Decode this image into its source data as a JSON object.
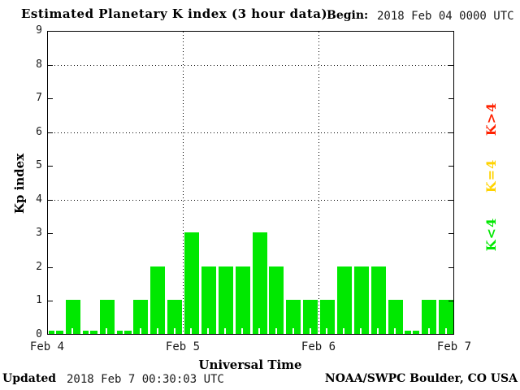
{
  "header": {
    "title": "Estimated Planetary K index (3 hour data)",
    "begin_label": "Begin:",
    "begin_value": "2018 Feb 04 0000 UTC"
  },
  "axes": {
    "y_label": "Kp index",
    "x_label": "Universal Time",
    "y_ticks": [
      "0",
      "1",
      "2",
      "3",
      "4",
      "5",
      "6",
      "7",
      "8",
      "9"
    ],
    "y_gridlines": [
      4,
      6,
      8
    ],
    "x_day_labels": [
      "Feb 4",
      "Feb 5",
      "Feb 6",
      "Feb 7"
    ]
  },
  "legend": {
    "items": [
      {
        "label": "K>4",
        "color": "#ff2100"
      },
      {
        "label": "K=4",
        "color": "#ffd300"
      },
      {
        "label": "K<4",
        "color": "#00e800"
      }
    ]
  },
  "footer": {
    "updated_label": "Updated",
    "updated_value": "2018 Feb  7 00:30:03 UTC",
    "credit": "NOAA/SWPC Boulder, CO USA"
  },
  "chart_data": {
    "type": "bar",
    "title": "Estimated Planetary K index (3 hour data)",
    "begin": "2018 Feb 04 0000 UTC",
    "updated": "2018 Feb 7 00:30:03 UTC",
    "xlabel": "Universal Time",
    "ylabel": "Kp index",
    "ylim": [
      0,
      9
    ],
    "interval_hours": 3,
    "days": [
      "Feb 4",
      "Feb 5",
      "Feb 6"
    ],
    "values": [
      0,
      1,
      0,
      1,
      0,
      1,
      2,
      1,
      3,
      2,
      2,
      2,
      3,
      2,
      1,
      1,
      1,
      2,
      2,
      2,
      1,
      0,
      1,
      1
    ],
    "bar_color_rule": {
      "below_4": "#00e800",
      "equal_4": "#ffd300",
      "above_4": "#ff2100"
    },
    "grid": "dotted horizontal at 4,6,8; dotted vertical at day boundaries",
    "legend_position": "right, rotated"
  }
}
